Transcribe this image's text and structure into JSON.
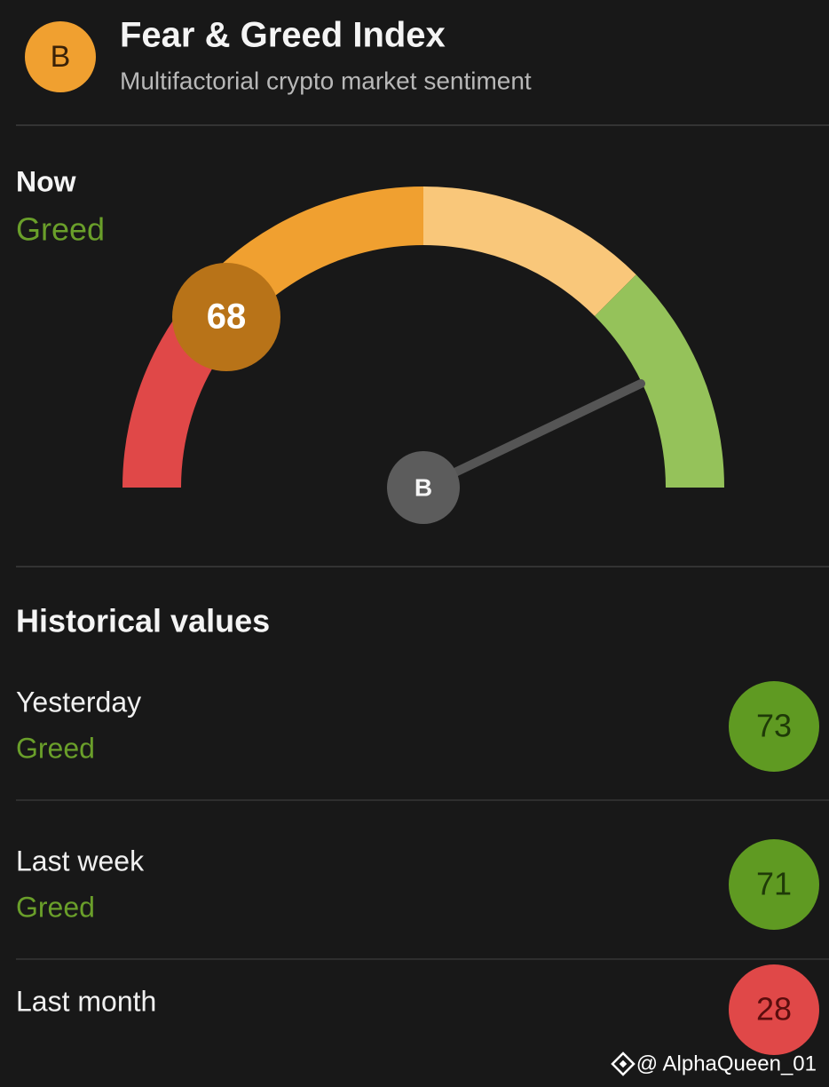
{
  "header": {
    "logo": "B",
    "title": "Fear & Greed Index",
    "subtitle": "Multifactorial crypto market sentiment"
  },
  "now": {
    "label": "Now",
    "status": "Greed",
    "value": 68,
    "needle_logo": "B"
  },
  "historical": {
    "title": "Historical values",
    "rows": [
      {
        "label": "Yesterday",
        "status": "Greed",
        "value": 73
      },
      {
        "label": "Last week",
        "status": "Greed",
        "value": 71
      },
      {
        "label": "Last month",
        "value": 28
      }
    ]
  },
  "watermark": "@ AlphaQueen_01"
}
